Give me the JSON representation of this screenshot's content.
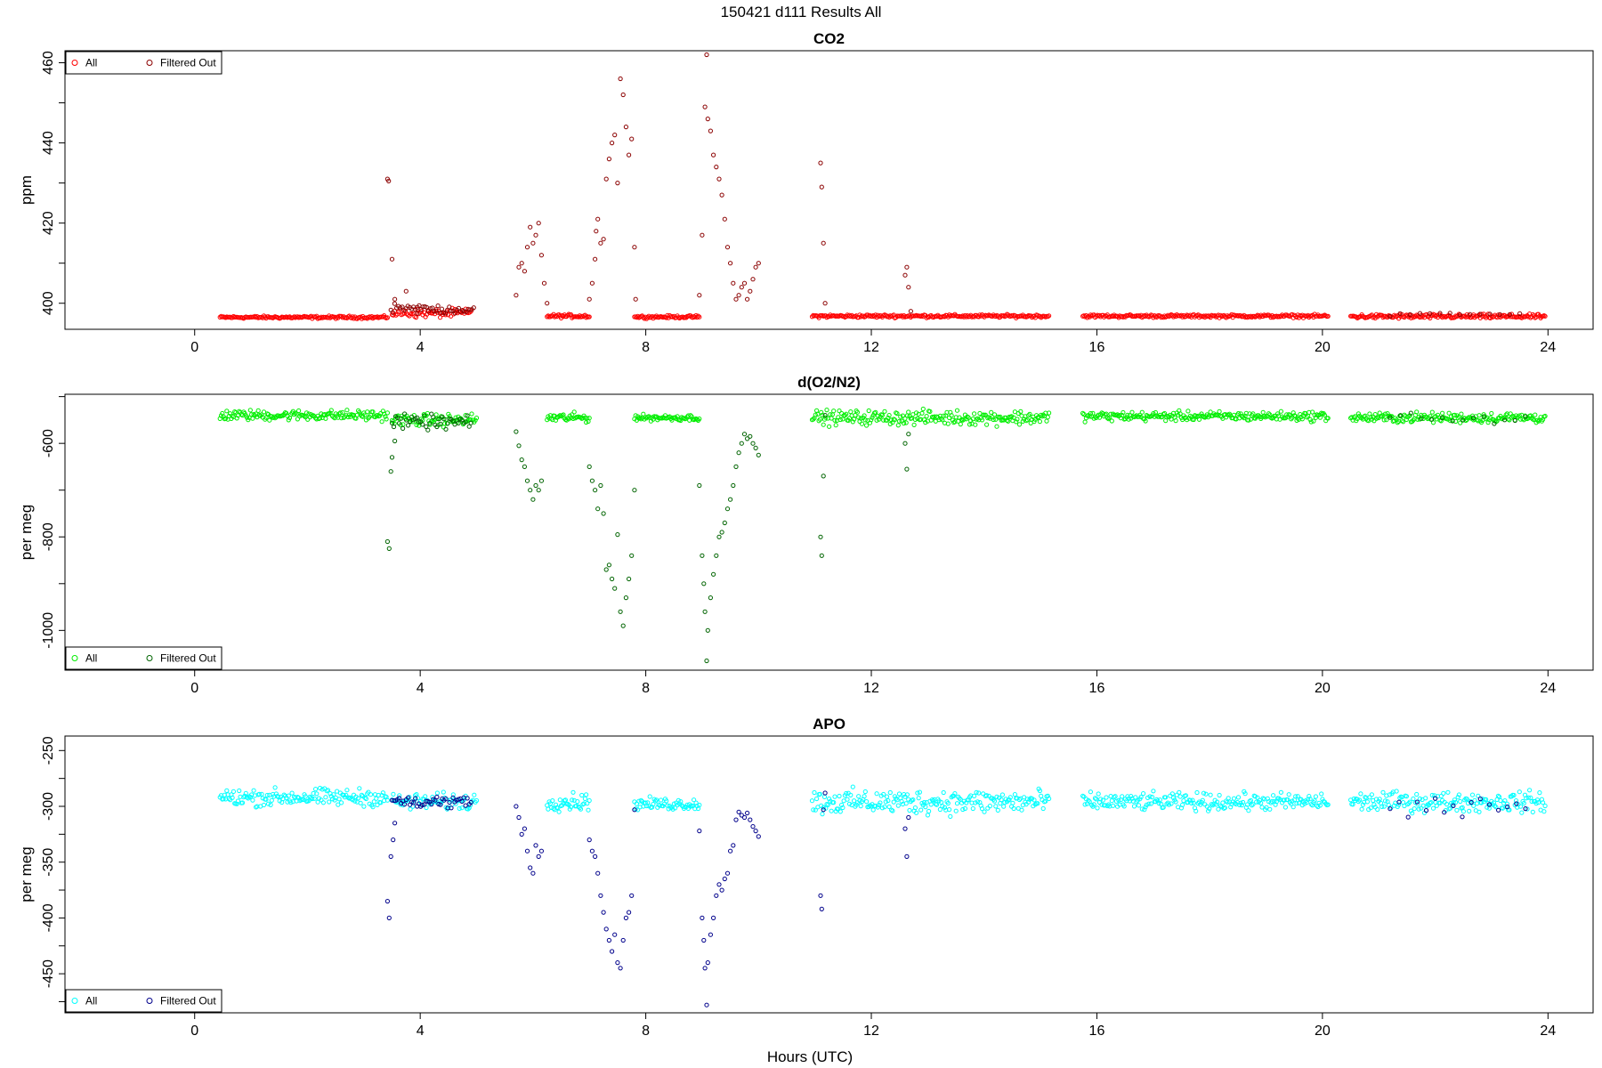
{
  "suptitle": "150421   d111   Results All",
  "xlabel": "Hours (UTC)",
  "colors": {
    "co2_all": "#ff0000",
    "co2_filtered": "#8b0000",
    "o2_all": "#00ee00",
    "o2_filtered": "#006400",
    "apo_all": "#00ffff",
    "apo_filtered": "#00008b"
  },
  "chart_data": [
    {
      "type": "scatter",
      "title": "CO2",
      "ylabel": "ppm",
      "xlim": [
        -2.3,
        24.8
      ],
      "ylim": [
        393.5,
        463
      ],
      "xticks": [
        0,
        4,
        8,
        12,
        16,
        20,
        24
      ],
      "yticks": [
        400,
        420,
        440,
        460
      ],
      "legend_position": "top-left",
      "legend": [
        "All",
        "Filtered Out"
      ],
      "series": [
        {
          "name": "All",
          "role": "all",
          "segments": [
            {
              "x0": 0.45,
              "x1": 3.42,
              "n": 150,
              "base": 396.5,
              "noise": 0.3
            },
            {
              "x0": 3.5,
              "x1": 4.9,
              "n": 60,
              "base": 397.5,
              "noise": 1.0
            },
            {
              "x0": 6.25,
              "x1": 7.0,
              "n": 40,
              "base": 396.8,
              "noise": 0.4
            },
            {
              "x0": 7.8,
              "x1": 8.95,
              "n": 60,
              "base": 396.6,
              "noise": 0.3
            },
            {
              "x0": 10.95,
              "x1": 15.15,
              "n": 210,
              "base": 396.8,
              "noise": 0.35
            },
            {
              "x0": 15.75,
              "x1": 20.1,
              "n": 220,
              "base": 396.8,
              "noise": 0.35
            },
            {
              "x0": 20.5,
              "x1": 23.95,
              "n": 175,
              "base": 396.7,
              "noise": 0.5
            }
          ]
        },
        {
          "name": "Filtered Out",
          "role": "filtered",
          "segments": [
            {
              "x0": 3.48,
              "x1": 4.95,
              "n": 45,
              "base": 398.5,
              "noise": 1.2
            },
            {
              "x0": 21.2,
              "x1": 23.5,
              "n": 14,
              "base": 397.2,
              "noise": 0.5
            }
          ],
          "points": [
            [
              3.42,
              431
            ],
            [
              3.44,
              430.5
            ],
            [
              3.5,
              411
            ],
            [
              3.55,
              401
            ],
            [
              3.75,
              403
            ],
            [
              3.95,
              399
            ],
            [
              5.7,
              402
            ],
            [
              5.75,
              409
            ],
            [
              5.8,
              410
            ],
            [
              5.85,
              408
            ],
            [
              5.9,
              414
            ],
            [
              5.95,
              419
            ],
            [
              6.0,
              415
            ],
            [
              6.05,
              417
            ],
            [
              6.1,
              420
            ],
            [
              6.15,
              412
            ],
            [
              6.2,
              405
            ],
            [
              6.25,
              400
            ],
            [
              7.0,
              401
            ],
            [
              7.05,
              405
            ],
            [
              7.1,
              411
            ],
            [
              7.12,
              418
            ],
            [
              7.15,
              421
            ],
            [
              7.2,
              415
            ],
            [
              7.25,
              416
            ],
            [
              7.3,
              431
            ],
            [
              7.35,
              436
            ],
            [
              7.4,
              440
            ],
            [
              7.45,
              442
            ],
            [
              7.5,
              430
            ],
            [
              7.55,
              456
            ],
            [
              7.6,
              452
            ],
            [
              7.65,
              444
            ],
            [
              7.7,
              437
            ],
            [
              7.75,
              441
            ],
            [
              7.8,
              414
            ],
            [
              7.82,
              401
            ],
            [
              8.95,
              402
            ],
            [
              9.0,
              417
            ],
            [
              9.05,
              449
            ],
            [
              9.08,
              462
            ],
            [
              9.1,
              446
            ],
            [
              9.15,
              443
            ],
            [
              9.2,
              437
            ],
            [
              9.25,
              434
            ],
            [
              9.3,
              431
            ],
            [
              9.35,
              427
            ],
            [
              9.4,
              421
            ],
            [
              9.45,
              414
            ],
            [
              9.5,
              410
            ],
            [
              9.55,
              405
            ],
            [
              9.6,
              401
            ],
            [
              9.65,
              402
            ],
            [
              9.7,
              404
            ],
            [
              9.75,
              405
            ],
            [
              9.8,
              401
            ],
            [
              9.85,
              403
            ],
            [
              9.9,
              406
            ],
            [
              9.95,
              409
            ],
            [
              10.0,
              410
            ],
            [
              11.1,
              435
            ],
            [
              11.12,
              429
            ],
            [
              11.15,
              415
            ],
            [
              11.18,
              400
            ],
            [
              12.6,
              407
            ],
            [
              12.63,
              409
            ],
            [
              12.66,
              404
            ],
            [
              12.7,
              398
            ]
          ]
        }
      ]
    },
    {
      "type": "scatter",
      "title": "d(O2/N2)",
      "ylabel": "per meg",
      "xlim": [
        -2.3,
        24.8
      ],
      "ylim": [
        -1085,
        -495
      ],
      "xticks": [
        0,
        4,
        8,
        12,
        16,
        20,
        24
      ],
      "yticks": [
        -1000,
        -800,
        -600
      ],
      "legend_position": "bottom-left",
      "legend": [
        "All",
        "Filtered Out"
      ],
      "series": [
        {
          "name": "All",
          "role": "all",
          "segments": [
            {
              "x0": 0.45,
              "x1": 3.42,
              "n": 150,
              "base": -540,
              "noise": 10
            },
            {
              "x0": 3.5,
              "x1": 5.0,
              "n": 70,
              "base": -550,
              "noise": 12
            },
            {
              "x0": 6.25,
              "x1": 7.0,
              "n": 40,
              "base": -545,
              "noise": 9
            },
            {
              "x0": 7.8,
              "x1": 8.95,
              "n": 60,
              "base": -545,
              "noise": 6
            },
            {
              "x0": 10.95,
              "x1": 15.15,
              "n": 210,
              "base": -545,
              "noise": 14
            },
            {
              "x0": 15.75,
              "x1": 20.1,
              "n": 220,
              "base": -542,
              "noise": 9
            },
            {
              "x0": 20.5,
              "x1": 23.95,
              "n": 175,
              "base": -545,
              "noise": 10
            }
          ]
        },
        {
          "name": "Filtered Out",
          "role": "filtered",
          "segments": [
            {
              "x0": 3.5,
              "x1": 4.9,
              "n": 45,
              "base": -555,
              "noise": 14
            },
            {
              "x0": 21.2,
              "x1": 23.6,
              "n": 14,
              "base": -548,
              "noise": 10
            }
          ],
          "points": [
            [
              3.42,
              -810
            ],
            [
              3.45,
              -825
            ],
            [
              3.48,
              -660
            ],
            [
              3.5,
              -630
            ],
            [
              3.55,
              -595
            ],
            [
              5.7,
              -575
            ],
            [
              5.75,
              -605
            ],
            [
              5.8,
              -635
            ],
            [
              5.85,
              -650
            ],
            [
              5.9,
              -680
            ],
            [
              5.95,
              -700
            ],
            [
              6.0,
              -720
            ],
            [
              6.05,
              -690
            ],
            [
              6.1,
              -700
            ],
            [
              6.15,
              -680
            ],
            [
              7.0,
              -650
            ],
            [
              7.05,
              -680
            ],
            [
              7.1,
              -700
            ],
            [
              7.15,
              -740
            ],
            [
              7.2,
              -690
            ],
            [
              7.25,
              -750
            ],
            [
              7.3,
              -870
            ],
            [
              7.35,
              -860
            ],
            [
              7.4,
              -890
            ],
            [
              7.45,
              -910
            ],
            [
              7.5,
              -795
            ],
            [
              7.55,
              -960
            ],
            [
              7.6,
              -990
            ],
            [
              7.65,
              -930
            ],
            [
              7.7,
              -890
            ],
            [
              7.75,
              -840
            ],
            [
              7.8,
              -700
            ],
            [
              8.95,
              -690
            ],
            [
              9.0,
              -840
            ],
            [
              9.03,
              -900
            ],
            [
              9.05,
              -960
            ],
            [
              9.08,
              -1065
            ],
            [
              9.1,
              -1000
            ],
            [
              9.15,
              -930
            ],
            [
              9.2,
              -880
            ],
            [
              9.25,
              -840
            ],
            [
              9.3,
              -800
            ],
            [
              9.35,
              -790
            ],
            [
              9.4,
              -770
            ],
            [
              9.45,
              -740
            ],
            [
              9.5,
              -720
            ],
            [
              9.55,
              -690
            ],
            [
              9.6,
              -650
            ],
            [
              9.65,
              -620
            ],
            [
              9.7,
              -600
            ],
            [
              9.75,
              -580
            ],
            [
              9.8,
              -590
            ],
            [
              9.85,
              -585
            ],
            [
              9.9,
              -600
            ],
            [
              9.95,
              -610
            ],
            [
              10.0,
              -625
            ],
            [
              11.1,
              -800
            ],
            [
              11.12,
              -840
            ],
            [
              11.15,
              -670
            ],
            [
              11.18,
              -540
            ],
            [
              12.6,
              -600
            ],
            [
              12.63,
              -655
            ],
            [
              12.66,
              -580
            ]
          ]
        }
      ]
    },
    {
      "type": "scatter",
      "title": "APO",
      "ylabel": "per meg",
      "xlim": [
        -2.3,
        24.8
      ],
      "ylim": [
        -485,
        -237
      ],
      "xticks": [
        0,
        4,
        8,
        12,
        16,
        20,
        24
      ],
      "yticks": [
        -450,
        -400,
        -350,
        -300,
        -250
      ],
      "legend_position": "bottom-left",
      "legend": [
        "All",
        "Filtered Out"
      ],
      "series": [
        {
          "name": "All",
          "role": "all",
          "segments": [
            {
              "x0": 0.45,
              "x1": 3.42,
              "n": 150,
              "base": -292,
              "noise": 7
            },
            {
              "x0": 3.5,
              "x1": 5.0,
              "n": 70,
              "base": -296,
              "noise": 7
            },
            {
              "x0": 6.25,
              "x1": 7.0,
              "n": 40,
              "base": -296,
              "noise": 7
            },
            {
              "x0": 7.8,
              "x1": 8.95,
              "n": 60,
              "base": -298,
              "noise": 5
            },
            {
              "x0": 10.95,
              "x1": 15.15,
              "n": 210,
              "base": -296,
              "noise": 10
            },
            {
              "x0": 15.75,
              "x1": 20.1,
              "n": 220,
              "base": -296,
              "noise": 7
            },
            {
              "x0": 20.5,
              "x1": 23.95,
              "n": 175,
              "base": -296,
              "noise": 8
            }
          ]
        },
        {
          "name": "Filtered Out",
          "role": "filtered",
          "segments": [
            {
              "x0": 3.5,
              "x1": 4.9,
              "n": 45,
              "base": -296,
              "noise": 6
            },
            {
              "x0": 21.2,
              "x1": 23.6,
              "n": 16,
              "base": -300,
              "noise": 8
            }
          ],
          "points": [
            [
              3.42,
              -385
            ],
            [
              3.45,
              -400
            ],
            [
              3.48,
              -345
            ],
            [
              3.52,
              -330
            ],
            [
              3.55,
              -315
            ],
            [
              5.7,
              -300
            ],
            [
              5.75,
              -310
            ],
            [
              5.8,
              -325
            ],
            [
              5.85,
              -320
            ],
            [
              5.9,
              -340
            ],
            [
              5.95,
              -355
            ],
            [
              6.0,
              -360
            ],
            [
              6.05,
              -335
            ],
            [
              6.1,
              -345
            ],
            [
              6.15,
              -340
            ],
            [
              7.0,
              -330
            ],
            [
              7.05,
              -340
            ],
            [
              7.1,
              -345
            ],
            [
              7.15,
              -360
            ],
            [
              7.2,
              -380
            ],
            [
              7.25,
              -395
            ],
            [
              7.3,
              -410
            ],
            [
              7.35,
              -420
            ],
            [
              7.4,
              -430
            ],
            [
              7.45,
              -415
            ],
            [
              7.5,
              -440
            ],
            [
              7.55,
              -445
            ],
            [
              7.6,
              -420
            ],
            [
              7.65,
              -400
            ],
            [
              7.7,
              -395
            ],
            [
              7.75,
              -380
            ],
            [
              7.8,
              -303
            ],
            [
              8.95,
              -322
            ],
            [
              9.0,
              -400
            ],
            [
              9.03,
              -420
            ],
            [
              9.05,
              -445
            ],
            [
              9.08,
              -478
            ],
            [
              9.1,
              -440
            ],
            [
              9.15,
              -415
            ],
            [
              9.2,
              -400
            ],
            [
              9.25,
              -380
            ],
            [
              9.3,
              -370
            ],
            [
              9.35,
              -375
            ],
            [
              9.4,
              -365
            ],
            [
              9.45,
              -360
            ],
            [
              9.5,
              -340
            ],
            [
              9.55,
              -335
            ],
            [
              9.6,
              -312
            ],
            [
              9.65,
              -305
            ],
            [
              9.7,
              -308
            ],
            [
              9.75,
              -310
            ],
            [
              9.8,
              -306
            ],
            [
              9.85,
              -312
            ],
            [
              9.9,
              -318
            ],
            [
              9.95,
              -322
            ],
            [
              10.0,
              -327
            ],
            [
              11.1,
              -380
            ],
            [
              11.12,
              -392
            ],
            [
              11.15,
              -303
            ],
            [
              11.18,
              -288
            ],
            [
              12.6,
              -320
            ],
            [
              12.63,
              -345
            ],
            [
              12.66,
              -310
            ]
          ]
        }
      ]
    }
  ]
}
